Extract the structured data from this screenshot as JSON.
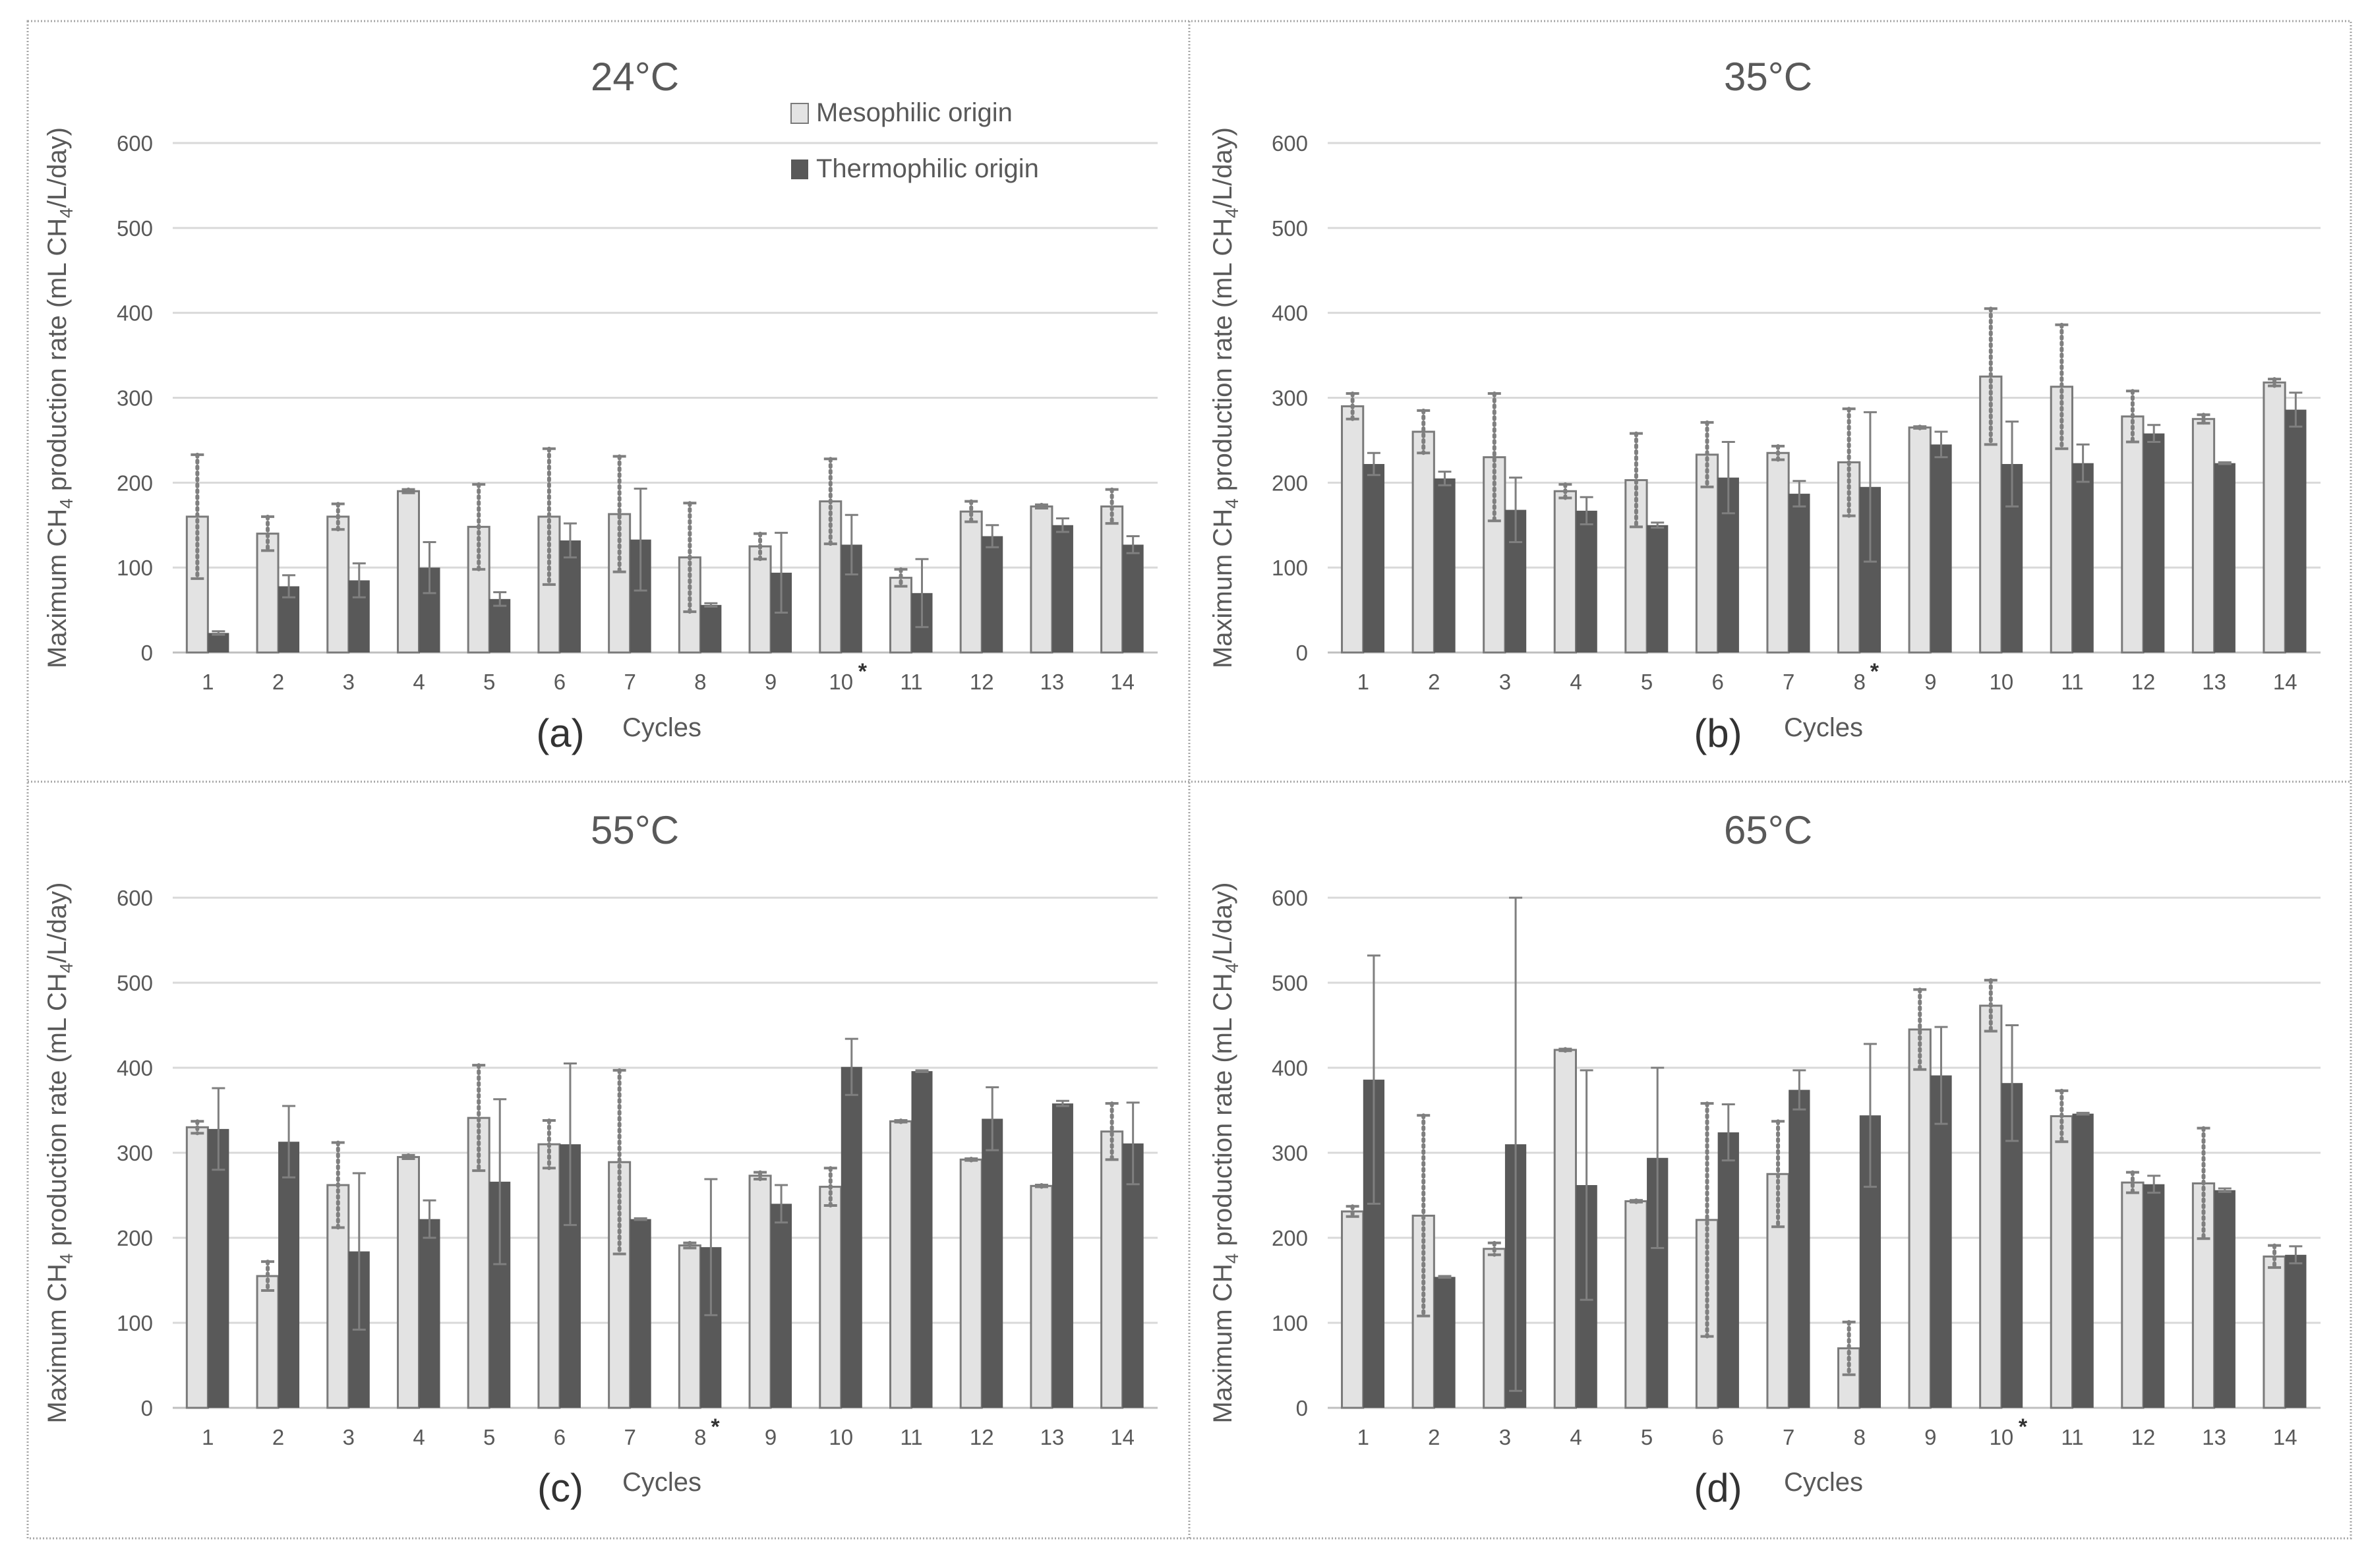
{
  "colors": {
    "mesophilic_fill": "#e3e3e3",
    "mesophilic_stroke": "#7a7a7a",
    "thermophilic_fill": "#595959",
    "grid": "#d9d9d9",
    "text": "#595959",
    "frame": "#a6a6a6"
  },
  "legend": {
    "mesophilic": "Mesophilic origin",
    "thermophilic": "Thermophilic origin"
  },
  "axis": {
    "ylabel_main": "Maximum CH",
    "ylabel_sub": "4",
    "ylabel_tail": " production rate (mL CH",
    "ylabel_sub2": "4",
    "ylabel_end": "/L/day)",
    "xlabel": "Cycles",
    "yticks": [
      "0",
      "100",
      "200",
      "300",
      "400",
      "500",
      "600"
    ]
  },
  "chart_data": [
    {
      "type": "bar",
      "title": "24°C",
      "panel_label": "(a)",
      "xlabel": "Cycles",
      "ylabel": "Maximum CH4 production rate (mL CH4/L/day)",
      "ylim": [
        0,
        600
      ],
      "categories": [
        "1",
        "2",
        "3",
        "4",
        "5",
        "6",
        "7",
        "8",
        "9",
        "10",
        "11",
        "12",
        "13",
        "14"
      ],
      "asterisk_after": "10",
      "series": [
        {
          "name": "Mesophilic origin",
          "values": [
            160,
            140,
            160,
            190,
            148,
            160,
            163,
            112,
            125,
            178,
            88,
            166,
            172,
            172
          ],
          "errors": [
            73,
            20,
            15,
            2,
            50,
            80,
            68,
            64,
            15,
            50,
            10,
            12,
            2,
            20
          ]
        },
        {
          "name": "Thermophilic origin",
          "values": [
            23,
            78,
            85,
            100,
            63,
            132,
            133,
            56,
            94,
            127,
            70,
            137,
            150,
            127
          ],
          "errors": [
            2,
            13,
            20,
            30,
            8,
            20,
            60,
            2,
            47,
            35,
            40,
            13,
            8,
            10
          ]
        }
      ]
    },
    {
      "type": "bar",
      "title": "35°C",
      "panel_label": "(b)",
      "xlabel": "Cycles",
      "ylabel": "Maximum CH4 production rate (mL CH4/L/day)",
      "ylim": [
        0,
        600
      ],
      "categories": [
        "1",
        "2",
        "3",
        "4",
        "5",
        "6",
        "7",
        "8",
        "9",
        "10",
        "11",
        "12",
        "13",
        "14"
      ],
      "asterisk_after": "8",
      "series": [
        {
          "name": "Mesophilic origin",
          "values": [
            290,
            260,
            230,
            190,
            203,
            233,
            235,
            224,
            265,
            325,
            313,
            278,
            275,
            318
          ],
          "errors": [
            15,
            25,
            75,
            8,
            55,
            38,
            8,
            63,
            1,
            80,
            73,
            30,
            5,
            4
          ]
        },
        {
          "name": "Thermophilic origin",
          "values": [
            222,
            205,
            168,
            167,
            150,
            206,
            187,
            195,
            245,
            222,
            223,
            258,
            223,
            286
          ],
          "errors": [
            13,
            8,
            38,
            16,
            3,
            42,
            15,
            88,
            15,
            50,
            22,
            10,
            1,
            20
          ]
        }
      ]
    },
    {
      "type": "bar",
      "title": "55°C",
      "panel_label": "(c)",
      "xlabel": "Cycles",
      "ylabel": "Maximum CH4 production rate (mL CH4/L/day)",
      "ylim": [
        0,
        600
      ],
      "categories": [
        "1",
        "2",
        "3",
        "4",
        "5",
        "6",
        "7",
        "8",
        "9",
        "10",
        "11",
        "12",
        "13",
        "14"
      ],
      "asterisk_after": "8",
      "series": [
        {
          "name": "Mesophilic origin",
          "values": [
            330,
            155,
            262,
            295,
            341,
            310,
            289,
            191,
            273,
            260,
            337,
            292,
            261,
            325
          ],
          "errors": [
            7,
            17,
            50,
            2,
            62,
            28,
            108,
            3,
            4,
            22,
            1,
            1,
            1,
            33
          ]
        },
        {
          "name": "Thermophilic origin",
          "values": [
            328,
            313,
            184,
            222,
            266,
            310,
            222,
            189,
            240,
            401,
            396,
            340,
            358,
            311
          ],
          "errors": [
            48,
            42,
            92,
            22,
            97,
            95,
            1,
            80,
            22,
            33,
            1,
            37,
            3,
            48
          ]
        }
      ]
    },
    {
      "type": "bar",
      "title": "65°C",
      "panel_label": "(d)",
      "xlabel": "Cycles",
      "ylabel": "Maximum CH4 production rate (mL CH4/L/day)",
      "ylim": [
        0,
        600
      ],
      "categories": [
        "1",
        "2",
        "3",
        "4",
        "5",
        "6",
        "7",
        "8",
        "9",
        "10",
        "11",
        "12",
        "13",
        "14"
      ],
      "asterisk_after": "10",
      "series": [
        {
          "name": "Mesophilic origin",
          "values": [
            231,
            226,
            187,
            421,
            243,
            221,
            275,
            70,
            445,
            473,
            343,
            265,
            264,
            178
          ],
          "errors": [
            6,
            118,
            7,
            1,
            1,
            137,
            62,
            31,
            47,
            30,
            30,
            12,
            65,
            13
          ]
        },
        {
          "name": "Thermophilic origin",
          "values": [
            386,
            154,
            310,
            262,
            294,
            324,
            374,
            344,
            391,
            382,
            346,
            263,
            256,
            180
          ],
          "errors": [
            146,
            1,
            290,
            135,
            106,
            33,
            23,
            84,
            57,
            68,
            1,
            10,
            2,
            10
          ]
        }
      ]
    }
  ]
}
